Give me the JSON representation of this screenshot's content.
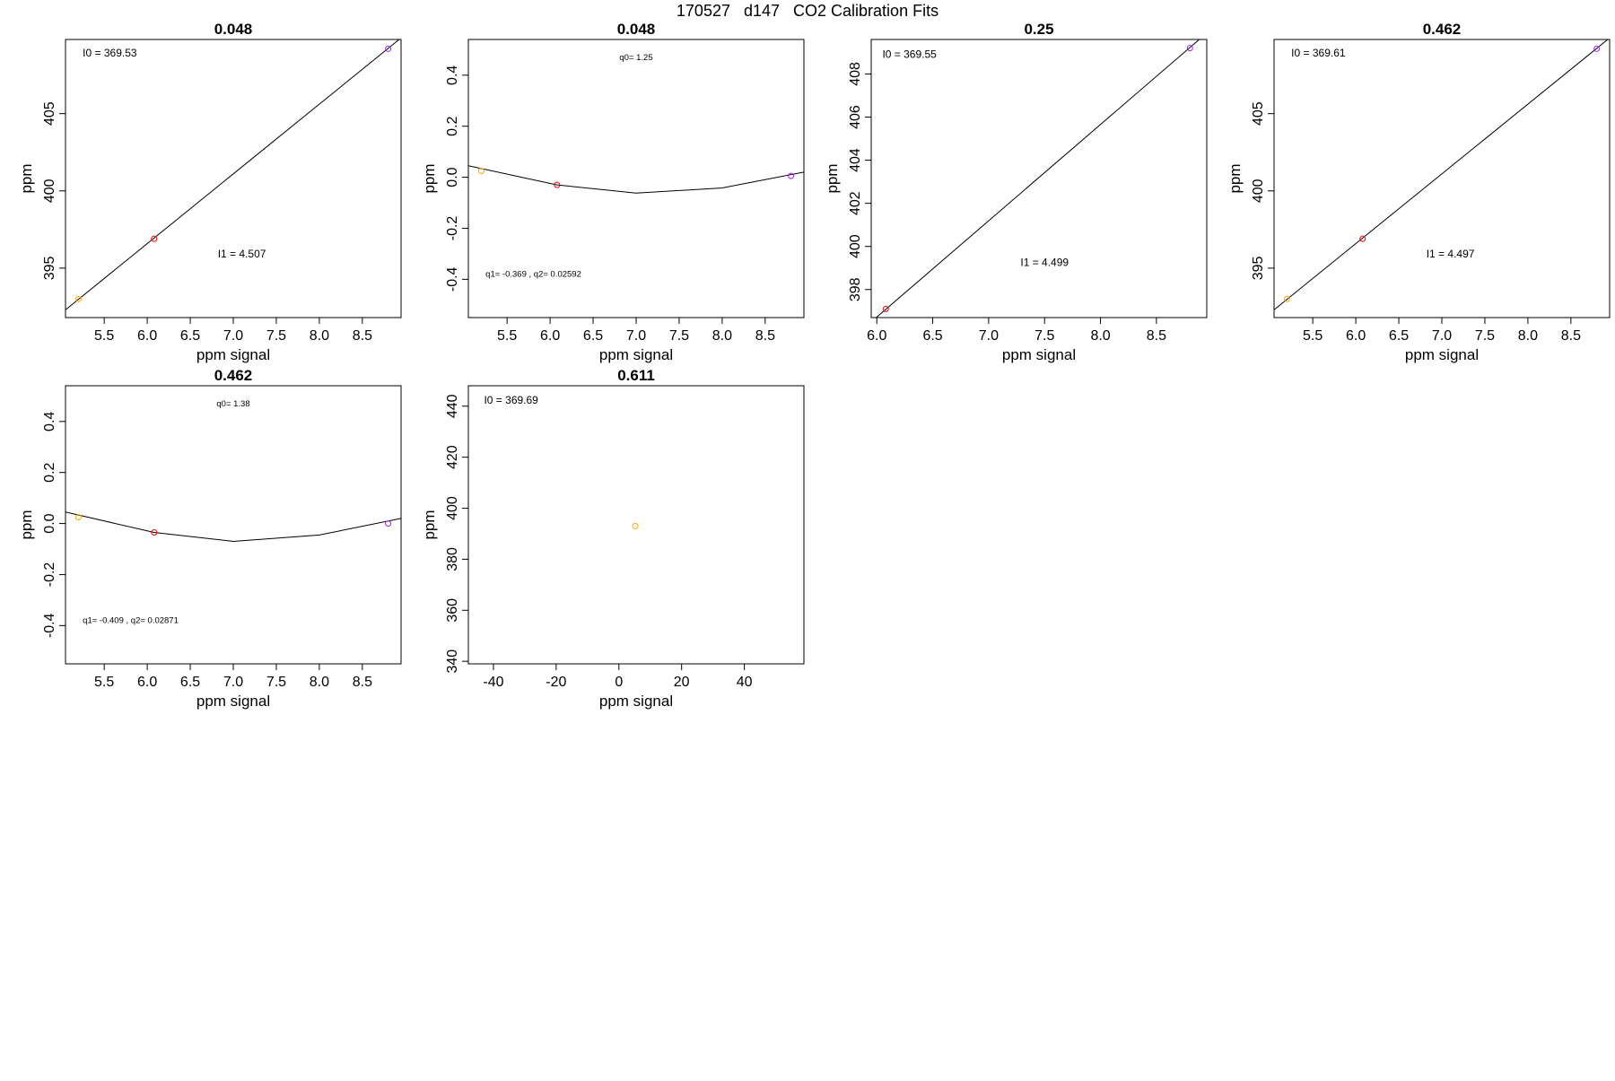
{
  "page": {
    "title": "170527   d147   CO2 Calibration Fits"
  },
  "chart_data": [
    {
      "type": "line",
      "title": "0.048",
      "xlabel": "ppm signal",
      "ylabel": "ppm",
      "xlim": [
        5.05,
        8.95
      ],
      "ylim": [
        391.8,
        409.8
      ],
      "xticks": [
        5.5,
        6.0,
        6.5,
        7.0,
        7.5,
        8.0,
        8.5
      ],
      "xtick_labels": [
        "5.5",
        "6.0",
        "6.5",
        "7.0",
        "7.5",
        "8.0",
        "8.5"
      ],
      "yticks": [
        395,
        400,
        405
      ],
      "ytick_labels": [
        "395",
        "400",
        "405"
      ],
      "line": {
        "x": [
          5.05,
          8.95
        ],
        "y": [
          392.3,
          409.9
        ]
      },
      "points": [
        {
          "x": 5.2,
          "y": 393.0,
          "color": "#FFA500"
        },
        {
          "x": 6.08,
          "y": 396.9,
          "color": "#FF0000"
        },
        {
          "x": 8.8,
          "y": 409.2,
          "color": "#A020F0"
        }
      ],
      "annotations": [
        {
          "text": "I0 =  369.53",
          "x": 5.25,
          "y": 408.7,
          "anchor": "start",
          "size": "normal"
        },
        {
          "text": "I1 =  4.507",
          "x": 7.1,
          "y": 395.7,
          "anchor": "middle",
          "size": "normal"
        }
      ]
    },
    {
      "type": "line",
      "title": "0.048",
      "xlabel": "ppm signal",
      "ylabel": "ppm",
      "xlim": [
        5.05,
        8.95
      ],
      "ylim": [
        -0.55,
        0.54
      ],
      "xticks": [
        5.5,
        6.0,
        6.5,
        7.0,
        7.5,
        8.0,
        8.5
      ],
      "xtick_labels": [
        "5.5",
        "6.0",
        "6.5",
        "7.0",
        "7.5",
        "8.0",
        "8.5"
      ],
      "yticks": [
        -0.4,
        -0.2,
        0.0,
        0.2,
        0.4
      ],
      "ytick_labels": [
        "-0.4",
        "-0.2",
        "0.0",
        "0.2",
        "0.4"
      ],
      "line": {
        "x": [
          5.05,
          6.08,
          7.0,
          8.0,
          8.95
        ],
        "y": [
          0.045,
          -0.03,
          -0.062,
          -0.042,
          0.02
        ]
      },
      "points": [
        {
          "x": 5.2,
          "y": 0.025,
          "color": "#FFA500"
        },
        {
          "x": 6.08,
          "y": -0.03,
          "color": "#FF0000"
        },
        {
          "x": 8.8,
          "y": 0.005,
          "color": "#A020F0"
        }
      ],
      "annotations": [
        {
          "text": "q0= 1.25",
          "x": 7.0,
          "y": 0.46,
          "anchor": "middle",
          "size": "small"
        },
        {
          "text": "q1= -0.369 , q2= 0.02592",
          "x": 5.25,
          "y": -0.39,
          "anchor": "start",
          "size": "small"
        }
      ]
    },
    {
      "type": "line",
      "title": "0.25",
      "xlabel": "ppm signal",
      "ylabel": "ppm",
      "xlim": [
        5.95,
        8.95
      ],
      "ylim": [
        396.7,
        409.6
      ],
      "xticks": [
        6.0,
        6.5,
        7.0,
        7.5,
        8.0,
        8.5
      ],
      "xtick_labels": [
        "6.0",
        "6.5",
        "7.0",
        "7.5",
        "8.0",
        "8.5"
      ],
      "yticks": [
        398,
        400,
        402,
        404,
        406,
        408
      ],
      "ytick_labels": [
        "398",
        "400",
        "402",
        "404",
        "406",
        "408"
      ],
      "line": {
        "x": [
          5.95,
          8.95
        ],
        "y": [
          396.5,
          409.9
        ]
      },
      "points": [
        {
          "x": 6.08,
          "y": 397.1,
          "color": "#FF0000"
        },
        {
          "x": 8.8,
          "y": 409.2,
          "color": "#A020F0"
        }
      ],
      "annotations": [
        {
          "text": "I0 =  369.55",
          "x": 6.05,
          "y": 408.75,
          "anchor": "start",
          "size": "normal"
        },
        {
          "text": "I1 =  4.499",
          "x": 7.5,
          "y": 399.1,
          "anchor": "middle",
          "size": "normal"
        }
      ]
    },
    {
      "type": "line",
      "title": "0.462",
      "xlabel": "ppm signal",
      "ylabel": "ppm",
      "xlim": [
        5.05,
        8.95
      ],
      "ylim": [
        391.8,
        409.8
      ],
      "xticks": [
        5.5,
        6.0,
        6.5,
        7.0,
        7.5,
        8.0,
        8.5
      ],
      "xtick_labels": [
        "5.5",
        "6.0",
        "6.5",
        "7.0",
        "7.5",
        "8.0",
        "8.5"
      ],
      "yticks": [
        395,
        400,
        405
      ],
      "ytick_labels": [
        "395",
        "400",
        "405"
      ],
      "line": {
        "x": [
          5.05,
          8.95
        ],
        "y": [
          392.3,
          409.9
        ]
      },
      "points": [
        {
          "x": 5.2,
          "y": 393.0,
          "color": "#FFA500"
        },
        {
          "x": 6.08,
          "y": 396.9,
          "color": "#FF0000"
        },
        {
          "x": 8.8,
          "y": 409.2,
          "color": "#A020F0"
        }
      ],
      "annotations": [
        {
          "text": "I0 =  369.61",
          "x": 5.25,
          "y": 408.7,
          "anchor": "start",
          "size": "normal"
        },
        {
          "text": "I1 =  4.497",
          "x": 7.1,
          "y": 395.7,
          "anchor": "middle",
          "size": "normal"
        }
      ]
    },
    {
      "type": "line",
      "title": "0.462",
      "xlabel": "ppm signal",
      "ylabel": "ppm",
      "xlim": [
        5.05,
        8.95
      ],
      "ylim": [
        -0.55,
        0.54
      ],
      "xticks": [
        5.5,
        6.0,
        6.5,
        7.0,
        7.5,
        8.0,
        8.5
      ],
      "xtick_labels": [
        "5.5",
        "6.0",
        "6.5",
        "7.0",
        "7.5",
        "8.0",
        "8.5"
      ],
      "yticks": [
        -0.4,
        -0.2,
        0.0,
        0.2,
        0.4
      ],
      "ytick_labels": [
        "-0.4",
        "-0.2",
        "0.0",
        "0.2",
        "0.4"
      ],
      "line": {
        "x": [
          5.05,
          6.08,
          7.0,
          8.0,
          8.95
        ],
        "y": [
          0.045,
          -0.035,
          -0.07,
          -0.045,
          0.02
        ]
      },
      "points": [
        {
          "x": 5.2,
          "y": 0.025,
          "color": "#FFA500"
        },
        {
          "x": 6.08,
          "y": -0.035,
          "color": "#FF0000"
        },
        {
          "x": 8.8,
          "y": 0.0,
          "color": "#A020F0"
        }
      ],
      "annotations": [
        {
          "text": "q0= 1.38",
          "x": 7.0,
          "y": 0.46,
          "anchor": "middle",
          "size": "small"
        },
        {
          "text": "q1= -0.409 , q2= 0.02871",
          "x": 5.25,
          "y": -0.39,
          "anchor": "start",
          "size": "small"
        }
      ]
    },
    {
      "type": "scatter",
      "title": "0.611",
      "xlabel": "ppm signal",
      "ylabel": "ppm",
      "xlim": [
        -48,
        59
      ],
      "ylim": [
        339,
        448
      ],
      "xticks": [
        -40,
        -20,
        0,
        20,
        40
      ],
      "xtick_labels": [
        "-40",
        "-20",
        "0",
        "20",
        "40"
      ],
      "yticks": [
        340,
        360,
        380,
        400,
        420,
        440
      ],
      "ytick_labels": [
        "340",
        "360",
        "380",
        "400",
        "420",
        "440"
      ],
      "line": null,
      "points": [
        {
          "x": 5.2,
          "y": 393.0,
          "color": "#FFA500"
        }
      ],
      "annotations": [
        {
          "text": "I0 =  369.69",
          "x": -43,
          "y": 441,
          "anchor": "start",
          "size": "normal"
        }
      ]
    }
  ]
}
